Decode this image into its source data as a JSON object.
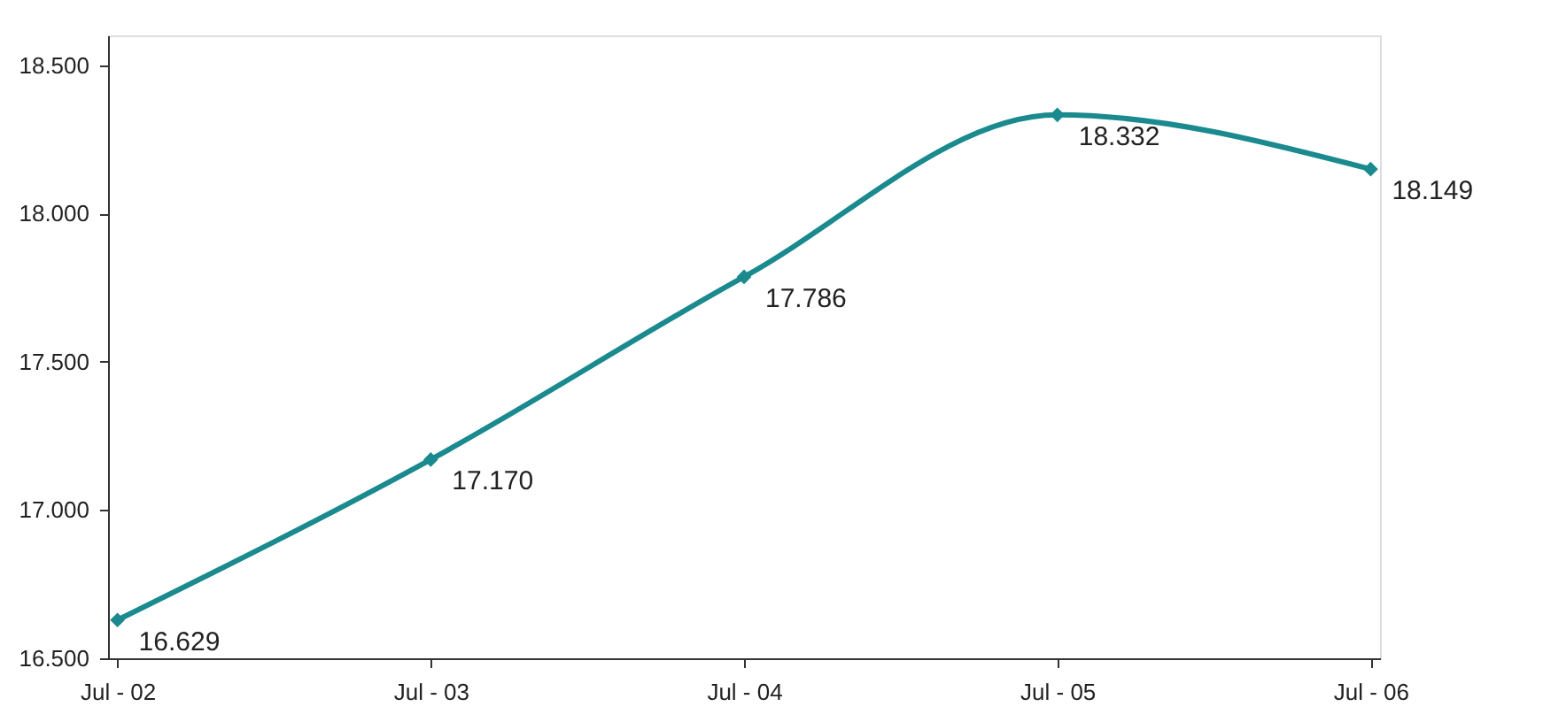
{
  "chart_data": {
    "type": "line",
    "categories": [
      "Jul - 02",
      "Jul - 03",
      "Jul - 04",
      "Jul - 05",
      "Jul - 06"
    ],
    "series": [
      {
        "color": "#1a8a8f",
        "values": [
          16629,
          17170,
          17786,
          18332,
          18149
        ],
        "value_labels": [
          "16.629",
          "17.170",
          "17.786",
          "18.332",
          "18.149"
        ]
      }
    ],
    "ylim": [
      16500,
      18600
    ],
    "yticks": [
      {
        "value": 16500,
        "label": "16.500"
      },
      {
        "value": 17000,
        "label": "17.000"
      },
      {
        "value": 17500,
        "label": "17.500"
      },
      {
        "value": 18000,
        "label": "18.000"
      },
      {
        "value": 18500,
        "label": "18.500"
      }
    ],
    "marker": "diamond",
    "line_style": "solid"
  }
}
